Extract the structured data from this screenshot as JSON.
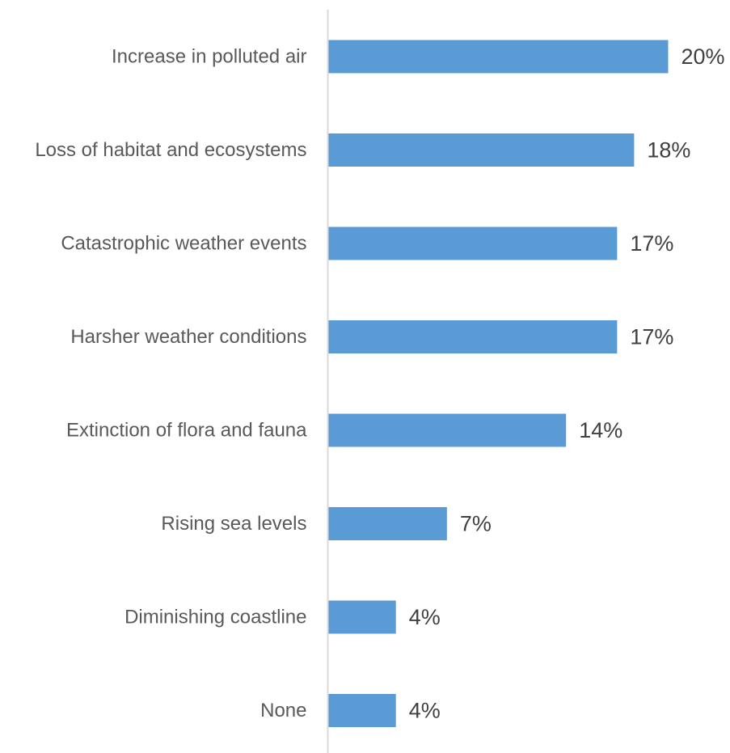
{
  "chart_data": {
    "type": "bar",
    "orientation": "horizontal",
    "categories": [
      "Increase in polluted air",
      "Loss of habitat and ecosystems",
      "Catastrophic weather events",
      "Harsher weather conditions",
      "Extinction of flora and fauna",
      "Rising sea levels",
      "Diminishing coastline",
      "None"
    ],
    "values": [
      20,
      18,
      17,
      17,
      14,
      7,
      4,
      4
    ],
    "value_labels": [
      "20%",
      "18%",
      "17%",
      "17%",
      "14%",
      "7%",
      "4%",
      "4%"
    ],
    "unit": "%",
    "title": "",
    "xlabel": "",
    "ylabel": "",
    "xlim": [
      0,
      20
    ],
    "grid": false,
    "legend": "none",
    "bar_color": "#5b9bd5",
    "axis_color": "#d9d9d9"
  }
}
